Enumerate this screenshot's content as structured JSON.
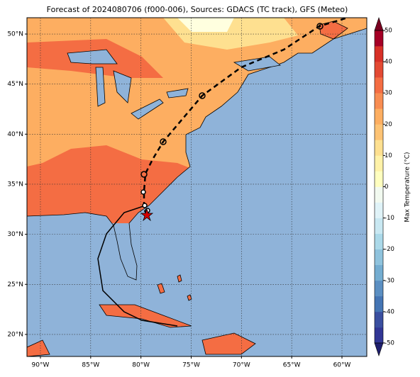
{
  "title": "Forecast of 2024080706 (f000-006), Sources: GDACS (TC track), GFS (Meteo)",
  "map": {
    "xlim": [
      -91.34,
      -57.53
    ],
    "ylim": [
      17.8,
      51.63
    ],
    "xticks": [
      {
        "value": -90,
        "label": "90°W"
      },
      {
        "value": -85,
        "label": "85°W"
      },
      {
        "value": -80,
        "label": "80°W"
      },
      {
        "value": -75,
        "label": "75°W"
      },
      {
        "value": -70,
        "label": "70°W"
      },
      {
        "value": -65,
        "label": "65°W"
      },
      {
        "value": -60,
        "label": "60°W"
      }
    ],
    "yticks": [
      {
        "value": 20,
        "label": "20°N"
      },
      {
        "value": 25,
        "label": "25°N"
      },
      {
        "value": 30,
        "label": "30°N"
      },
      {
        "value": 35,
        "label": "35°N"
      },
      {
        "value": 40,
        "label": "40°N"
      },
      {
        "value": 45,
        "label": "45°N"
      },
      {
        "value": 50,
        "label": "50°N"
      }
    ],
    "grid": true
  },
  "colorbar": {
    "label": "Max Temperature (°C)",
    "clim": [
      -50,
      50
    ],
    "ticks": [
      -50,
      -40,
      -30,
      -20,
      -10,
      0,
      10,
      20,
      30,
      40,
      50
    ],
    "colors": [
      "#313695",
      "#3a4fa0",
      "#4575b4",
      "#5b8fc2",
      "#74add1",
      "#8fc3dd",
      "#abd9e9",
      "#c9e8f2",
      "#e0f3f8",
      "#f2faf0",
      "#ffffbf",
      "#fff2a8",
      "#fee090",
      "#fdc374",
      "#fdae61",
      "#f88d52",
      "#f46d43",
      "#e34a33",
      "#d73027",
      "#a50026"
    ],
    "under_color": "#1f1f6e",
    "over_color": "#7a0020"
  }
}
